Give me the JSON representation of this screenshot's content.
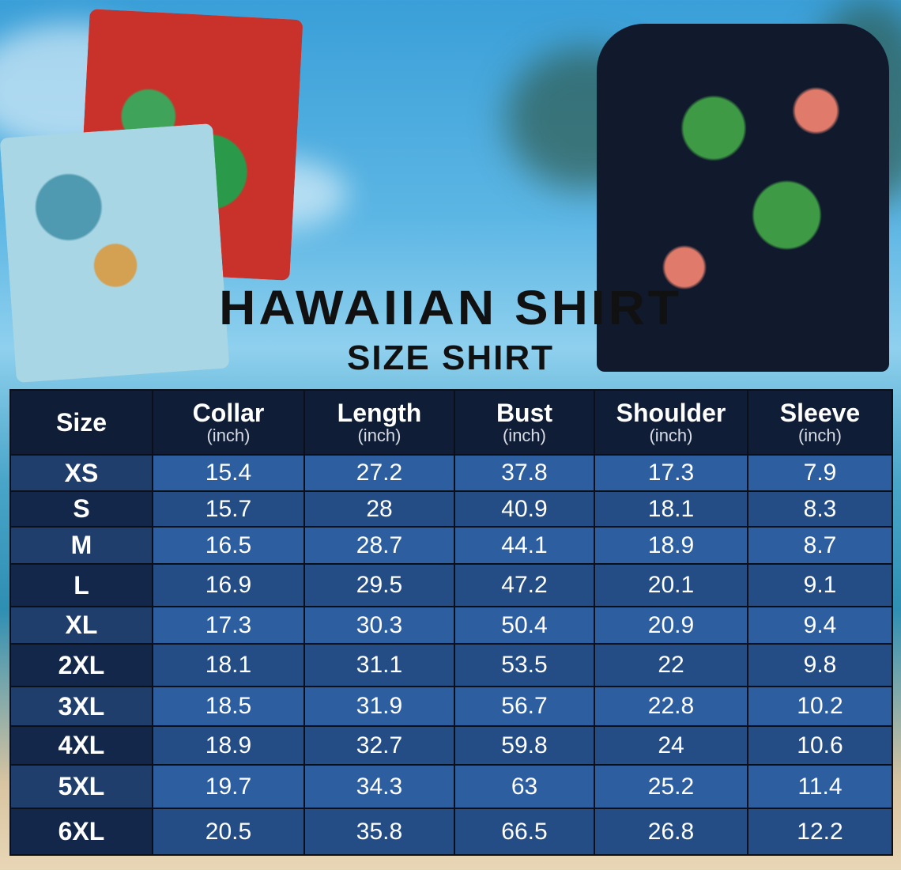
{
  "title": "HAWAIIAN SHIRT",
  "subtitle": "SIZE SHIRT",
  "table": {
    "headers": [
      {
        "label": "Size",
        "unit": ""
      },
      {
        "label": "Collar",
        "unit": "(inch)"
      },
      {
        "label": "Length",
        "unit": "(inch)"
      },
      {
        "label": "Bust",
        "unit": "(inch)"
      },
      {
        "label": "Shoulder",
        "unit": "(inch)"
      },
      {
        "label": "Sleeve",
        "unit": "(inch)"
      }
    ],
    "rows": [
      [
        "XS",
        "15.4",
        "27.2",
        "37.8",
        "17.3",
        "7.9"
      ],
      [
        "S",
        "15.7",
        "28",
        "40.9",
        "18.1",
        "8.3"
      ],
      [
        "M",
        "16.5",
        "28.7",
        "44.1",
        "18.9",
        "8.7"
      ],
      [
        "L",
        "16.9",
        "29.5",
        "47.2",
        "20.1",
        "9.1"
      ],
      [
        "XL",
        "17.3",
        "30.3",
        "50.4",
        "20.9",
        "9.4"
      ],
      [
        "2XL",
        "18.1",
        "31.1",
        "53.5",
        "22",
        "9.8"
      ],
      [
        "3XL",
        "18.5",
        "31.9",
        "56.7",
        "22.8",
        "10.2"
      ],
      [
        "4XL",
        "18.9",
        "32.7",
        "59.8",
        "24",
        "10.6"
      ],
      [
        "5XL",
        "19.7",
        "34.3",
        "63",
        "25.2",
        "11.4"
      ],
      [
        "6XL",
        "20.5",
        "35.8",
        "66.5",
        "26.8",
        "12.2"
      ]
    ]
  },
  "colors": {
    "header": "#0f1d36",
    "row_light": "#2c5ea0",
    "row_dark": "#244d86"
  }
}
